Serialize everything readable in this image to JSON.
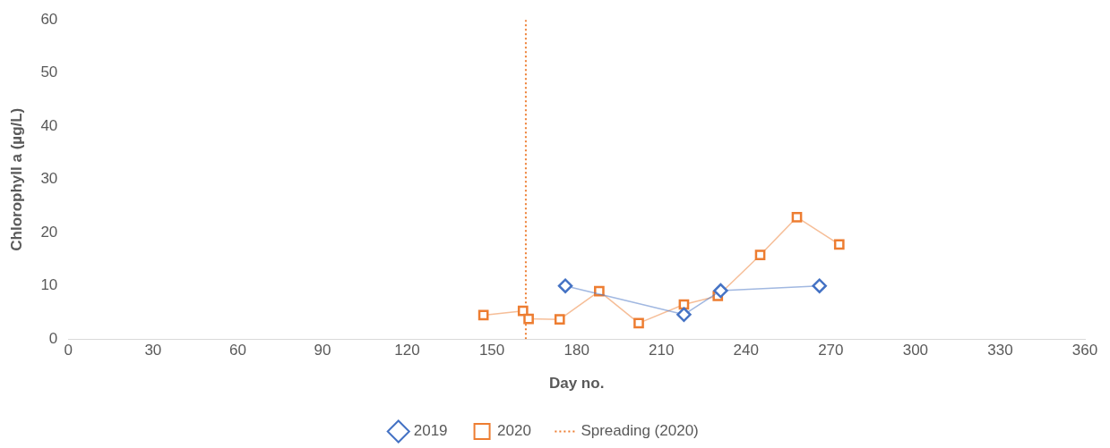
{
  "chart_data": {
    "type": "line",
    "xlabel": "Day no.",
    "ylabel": "Chlorophyll a (µg/L)",
    "xlim": [
      0,
      360
    ],
    "xticks": [
      0,
      30,
      60,
      90,
      120,
      150,
      180,
      210,
      240,
      270,
      300,
      330,
      360
    ],
    "ylim": [
      0,
      60
    ],
    "yticks": [
      0,
      10,
      20,
      30,
      40,
      50,
      60
    ],
    "grid": false,
    "legend": "bottom",
    "series": [
      {
        "name": "2019",
        "color": "#4472c4",
        "marker": "diamond",
        "x": [
          176,
          218,
          231,
          266
        ],
        "values": [
          10,
          4.6,
          9.1,
          10
        ]
      },
      {
        "name": "2020",
        "color": "#ed7d31",
        "marker": "square",
        "x": [
          147,
          161,
          163,
          174,
          188,
          202,
          218,
          230,
          245,
          258,
          273
        ],
        "values": [
          4.5,
          5.3,
          3.8,
          3.7,
          9,
          3,
          6.5,
          8.1,
          15.8,
          22.9,
          17.8
        ]
      }
    ],
    "ref_lines": [
      {
        "axis": "x",
        "value": 162,
        "label": "Spreading (2020)",
        "color": "#ed7d31",
        "line_style": "dotted"
      }
    ]
  }
}
